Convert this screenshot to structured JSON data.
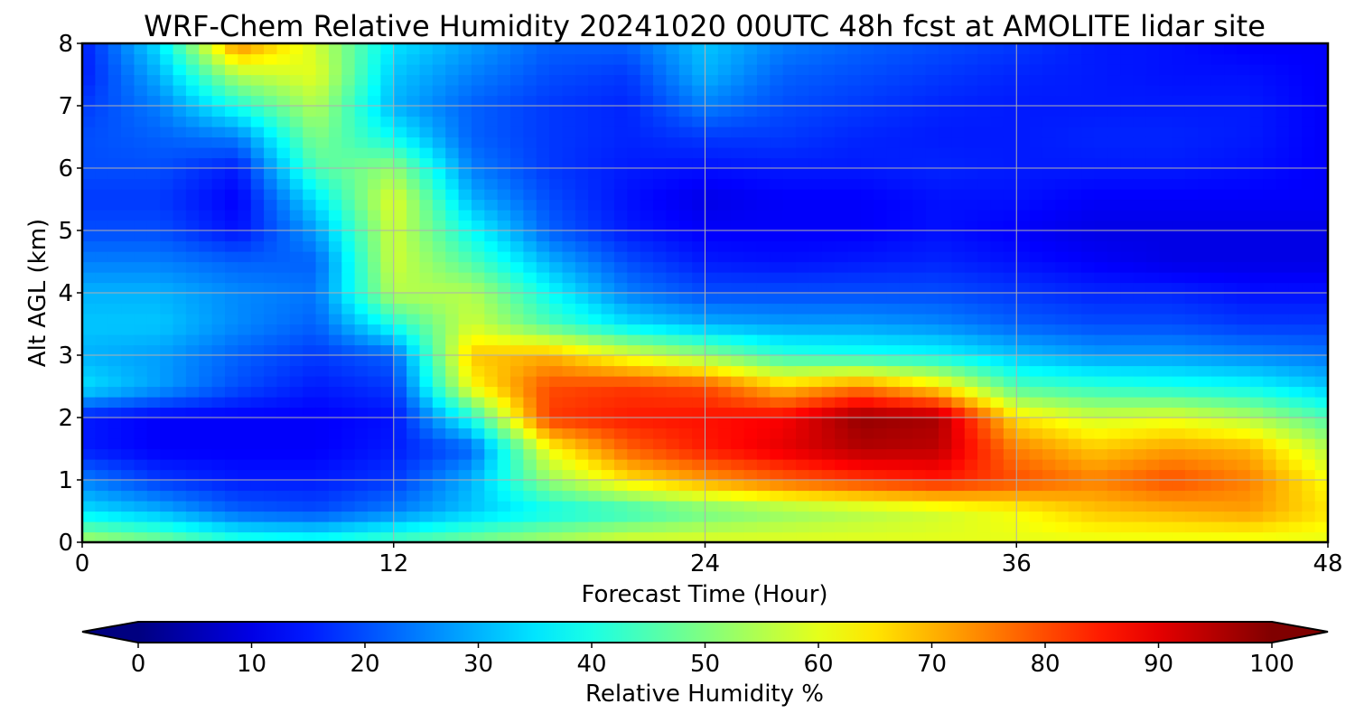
{
  "chart_data": {
    "type": "heatmap",
    "title": "WRF-Chem Relative Humidity 20241020 00UTC 48h fcst at AMOLITE lidar site",
    "xlabel": "Forecast Time (Hour)",
    "ylabel": "Alt AGL (km)",
    "xlim": [
      0,
      48
    ],
    "ylim": [
      0,
      8
    ],
    "x_ticks": [
      0,
      12,
      24,
      36,
      48
    ],
    "y_ticks": [
      0,
      1,
      2,
      3,
      4,
      5,
      6,
      7,
      8
    ],
    "grid": true,
    "x": [
      0,
      3,
      6,
      9,
      12,
      15,
      18,
      21,
      24,
      27,
      30,
      33,
      36,
      39,
      42,
      45,
      48
    ],
    "y": [
      0,
      0.5,
      1,
      1.5,
      2,
      2.5,
      3,
      3.5,
      4,
      4.5,
      5,
      5.5,
      6,
      6.5,
      7,
      7.5,
      8
    ],
    "values": [
      [
        55,
        50,
        42,
        40,
        45,
        50,
        55,
        60,
        60,
        60,
        60,
        60,
        60,
        60,
        60,
        60,
        60
      ],
      [
        35,
        30,
        22,
        20,
        25,
        32,
        38,
        42,
        48,
        52,
        55,
        58,
        62,
        68,
        70,
        72,
        65
      ],
      [
        25,
        18,
        15,
        15,
        18,
        30,
        52,
        65,
        72,
        78,
        82,
        85,
        80,
        75,
        80,
        75,
        62
      ],
      [
        15,
        12,
        12,
        12,
        15,
        22,
        62,
        78,
        85,
        90,
        95,
        94,
        75,
        68,
        72,
        70,
        55
      ],
      [
        15,
        12,
        12,
        12,
        14,
        40,
        82,
        85,
        86,
        88,
        98,
        96,
        65,
        58,
        60,
        55,
        45
      ],
      [
        35,
        28,
        20,
        15,
        18,
        62,
        80,
        82,
        80,
        68,
        75,
        65,
        45,
        42,
        40,
        38,
        32
      ],
      [
        30,
        28,
        22,
        18,
        22,
        68,
        70,
        60,
        52,
        42,
        40,
        38,
        32,
        28,
        28,
        26,
        24
      ],
      [
        32,
        32,
        26,
        22,
        40,
        58,
        45,
        35,
        30,
        28,
        28,
        26,
        22,
        20,
        20,
        18,
        18
      ],
      [
        30,
        30,
        26,
        24,
        55,
        55,
        38,
        25,
        20,
        20,
        20,
        20,
        18,
        16,
        16,
        14,
        14
      ],
      [
        25,
        25,
        22,
        22,
        58,
        45,
        30,
        20,
        15,
        14,
        15,
        16,
        14,
        12,
        10,
        10,
        10
      ],
      [
        20,
        20,
        14,
        28,
        58,
        38,
        22,
        15,
        12,
        12,
        12,
        14,
        12,
        10,
        10,
        10,
        10
      ],
      [
        18,
        18,
        12,
        35,
        60,
        30,
        20,
        14,
        10,
        12,
        12,
        14,
        14,
        12,
        12,
        12,
        12
      ],
      [
        20,
        20,
        15,
        45,
        52,
        25,
        18,
        15,
        14,
        15,
        15,
        16,
        15,
        15,
        15,
        14,
        12
      ],
      [
        20,
        22,
        25,
        50,
        38,
        22,
        18,
        16,
        18,
        18,
        16,
        15,
        15,
        16,
        16,
        15,
        12
      ],
      [
        18,
        25,
        40,
        55,
        30,
        22,
        18,
        16,
        25,
        20,
        18,
        16,
        15,
        15,
        15,
        15,
        12
      ],
      [
        15,
        30,
        55,
        60,
        32,
        25,
        20,
        18,
        30,
        22,
        20,
        18,
        16,
        15,
        14,
        14,
        12
      ],
      [
        15,
        35,
        75,
        58,
        35,
        28,
        22,
        22,
        32,
        25,
        22,
        20,
        18,
        15,
        14,
        12,
        12
      ]
    ],
    "colorbar": {
      "label": "Relative Humidity %",
      "colormap": "jet",
      "min": 0,
      "max": 100,
      "ticks": [
        0,
        10,
        20,
        30,
        40,
        50,
        60,
        70,
        80,
        90,
        100
      ],
      "extend": "both"
    }
  }
}
